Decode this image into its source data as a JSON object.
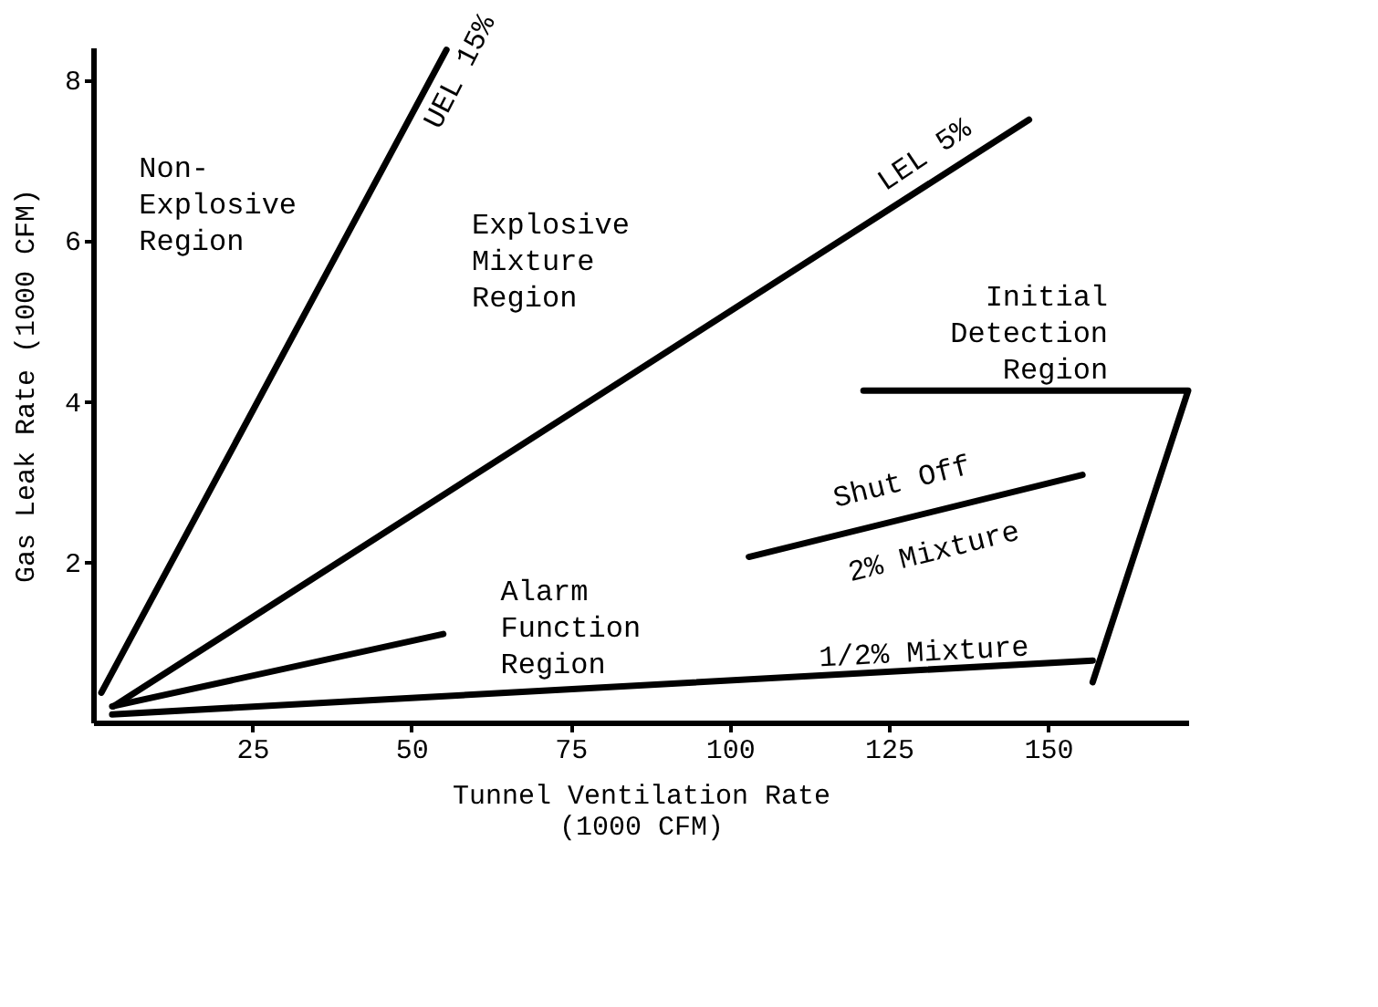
{
  "chart_data": {
    "type": "line",
    "xlabel": "Tunnel Ventilation Rate\n(1000 CFM)",
    "ylabel": "Gas Leak Rate (1000 CFM)",
    "xlim": [
      0,
      172
    ],
    "ylim": [
      0,
      8.4
    ],
    "xticks": [
      25,
      50,
      75,
      100,
      125,
      150
    ],
    "yticks": [
      2,
      4,
      6,
      8
    ],
    "grid": false,
    "marker": "none",
    "line_style": "solid",
    "series": [
      {
        "color": "#000000",
        "x": [
          1.3,
          55.5
        ],
        "values": [
          0.37,
          8.37
        ]
      },
      {
        "color": "#000000",
        "x": [
          3.2,
          147
        ],
        "values": [
          0.2,
          7.5
        ]
      },
      {
        "color": "#000000",
        "x": [
          3,
          55
        ],
        "values": [
          0.2,
          1.1
        ]
      },
      {
        "color": "#000000",
        "x": [
          3,
          157
        ],
        "values": [
          0.1,
          0.77
        ]
      },
      {
        "color": "#000000",
        "x": [
          103,
          155.4
        ],
        "values": [
          2.06,
          3.08
        ]
      },
      {
        "color": "#000000",
        "x": [
          121,
          172,
          157
        ],
        "values": [
          4.13,
          4.13,
          0.5
        ]
      }
    ],
    "annotations": [
      "Non-\nExplosive\nRegion",
      "Explosive\nMixture\nRegion",
      "Initial\nDetection\nRegion",
      "Alarm\nFunction\nRegion",
      "UEL 15%",
      "LEL 5%",
      "Shut Off",
      "2% Mixture",
      "1/2% Mixture"
    ]
  }
}
